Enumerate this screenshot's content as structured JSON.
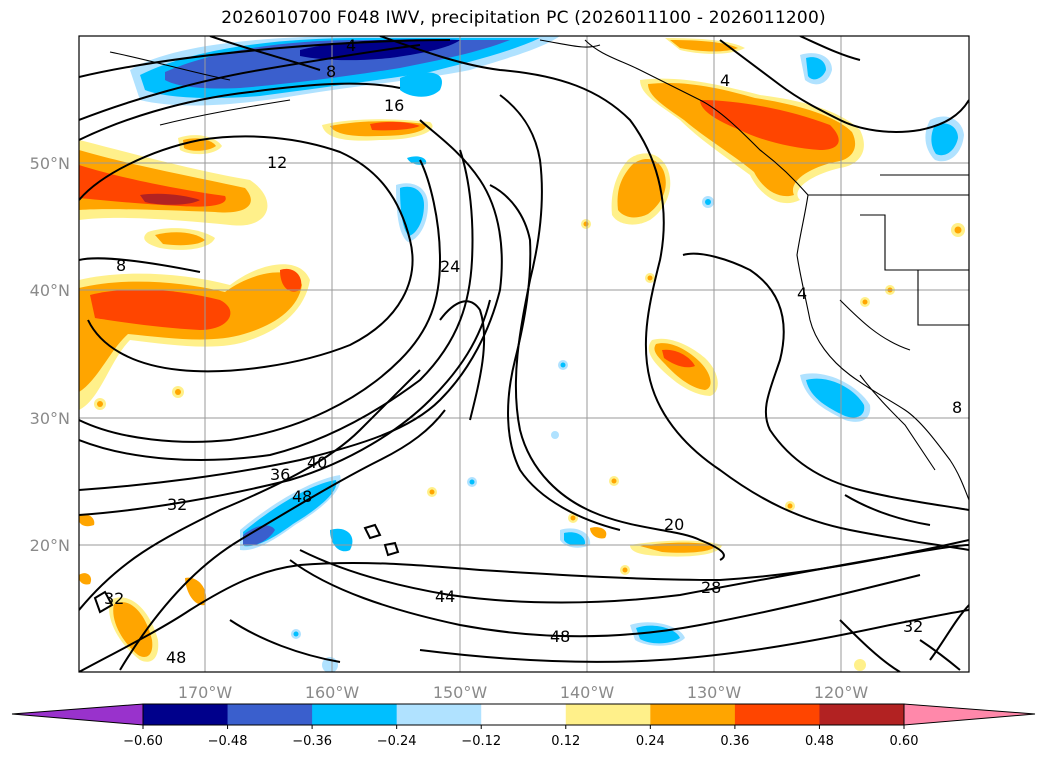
{
  "title": "2026010700 F048 IWV, precipitation PC (2026011100 - 2026011200)",
  "lon_ticks": [
    "170°W",
    "160°W",
    "150°W",
    "140°W",
    "130°W",
    "120°W"
  ],
  "lat_ticks": [
    "50°N",
    "40°N",
    "30°N",
    "20°N"
  ],
  "contour_labels": [
    "4",
    "8",
    "16",
    "12",
    "8",
    "24",
    "4",
    "4",
    "36",
    "40",
    "48",
    "32",
    "20",
    "28",
    "44",
    "48",
    "32",
    "8",
    "32",
    "48"
  ],
  "colorbar": {
    "ticks": [
      "−0.60",
      "−0.48",
      "−0.36",
      "−0.24",
      "−0.12",
      "0.12",
      "0.24",
      "0.36",
      "0.48",
      "0.60"
    ],
    "colors": [
      "#9932cc",
      "#00008b",
      "#3a5fcd",
      "#00bfff",
      "#b0e2ff",
      "#ffffff",
      "#fff08a",
      "#ffa500",
      "#ff4500",
      "#b22222",
      "#ff88aa"
    ]
  }
}
